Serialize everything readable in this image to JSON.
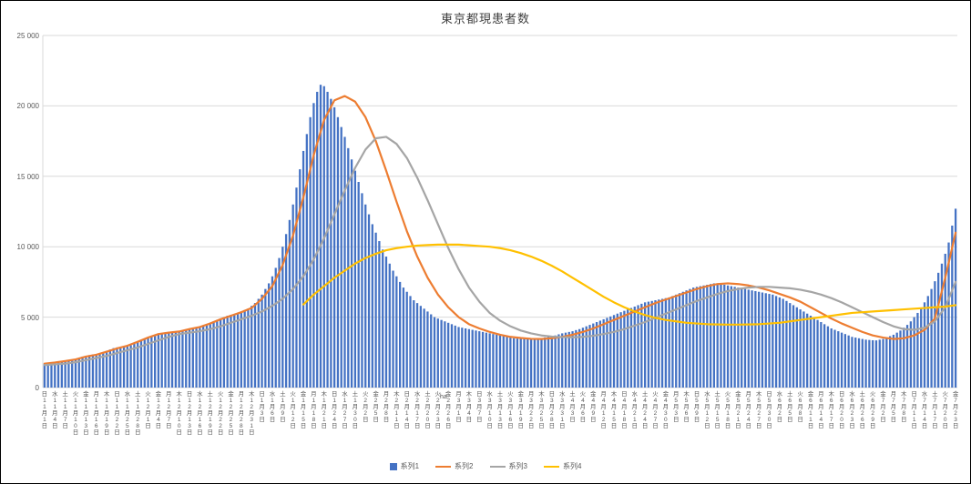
{
  "title": "東京都現患者数",
  "stray_text": "ha",
  "chart_data": {
    "type": "combo-bar-line",
    "title": "東京都現患者数",
    "ylim": [
      0,
      25000
    ],
    "y_tick_step": 5000,
    "y_tick_labels": [
      "25 000",
      "20 000",
      "15 000",
      "10 000",
      "5 000",
      "0"
    ],
    "x_tick_interval_days": 3,
    "grid": "horizontal",
    "legend_position": "bottom",
    "x_ticks": [
      "日|11月|1日",
      "水|11月|4日",
      "土|11月|7日",
      "火|11月|10日",
      "金|11月|13日",
      "月|11月|16日",
      "木|11月|19日",
      "日|11月|22日",
      "水|11月|25日",
      "土|11月|28日",
      "火|12月|1日",
      "金|12月|4日",
      "月|12月|7日",
      "木|12月|10日",
      "日|12月|13日",
      "水|12月|16日",
      "土|12月|19日",
      "火|12月|22日",
      "金|12月|25日",
      "月|12月|28日",
      "木|12月|31日",
      "日|1月|3日",
      "水|1月|6日",
      "土|1月|9日",
      "火|1月|12日",
      "金|1月|15日",
      "月|1月|18日",
      "木|1月|21日",
      "日|1月|24日",
      "水|1月|27日",
      "土|1月|30日",
      "火|2月|2日",
      "金|2月|5日",
      "月|2月|8日",
      "木|2月|11日",
      "日|2月|14日",
      "水|2月|17日",
      "土|2月|20日",
      "火|2月|23日",
      "金|2月|26日",
      "月|3月|1日",
      "木|3月|4日",
      "日|3月|7日",
      "水|3月|10日",
      "土|3月|13日",
      "火|3月|16日",
      "金|3月|19日",
      "月|3月|22日",
      "木|3月|25日",
      "日|3月|28日",
      "水|3月|31日",
      "土|4月|3日",
      "火|4月|6日",
      "金|4月|9日",
      "月|4月|12日",
      "木|4月|15日",
      "日|4月|18日",
      "水|4月|21日",
      "土|4月|24日",
      "火|4月|27日",
      "金|4月|30日",
      "月|5月|3日",
      "木|5月|6日",
      "日|5月|9日",
      "水|5月|12日",
      "土|5月|15日",
      "火|5月|18日",
      "金|5月|21日",
      "月|5月|24日",
      "木|5月|27日",
      "日|5月|30日",
      "水|6月|2日",
      "土|6月|5日",
      "火|6月|8日",
      "金|6月|11日",
      "月|6月|14日",
      "木|6月|17日",
      "日|6月|20日",
      "水|6月|23日",
      "土|6月|26日",
      "火|6月|29日",
      "金|7月|2日",
      "月|7月|5日",
      "木|7月|8日",
      "日|7月|11日",
      "水|7月|14日",
      "土|7月|17日",
      "火|7月|20日",
      "金|7月|23日"
    ],
    "series": [
      {
        "name": "系列1",
        "type": "bar",
        "color": "#4472C4",
        "values": [
          1700,
          1650,
          1600,
          1750,
          1800,
          1850,
          1900,
          1950,
          1900,
          2000,
          2100,
          2200,
          2250,
          2300,
          2350,
          2300,
          2400,
          2500,
          2600,
          2700,
          2800,
          2850,
          2800,
          2900,
          2950,
          3000,
          3100,
          3200,
          3300,
          3400,
          3500,
          3600,
          3700,
          3800,
          3850,
          3900,
          3950,
          3900,
          3950,
          4000,
          4050,
          4100,
          4150,
          4200,
          4250,
          4300,
          4400,
          4500,
          4600,
          4700,
          4800,
          4900,
          5000,
          5100,
          5150,
          5200,
          5300,
          5400,
          5500,
          5600,
          5800,
          6000,
          6300,
          6600,
          7000,
          7400,
          7900,
          8500,
          9200,
          10000,
          10900,
          11900,
          13000,
          14200,
          15500,
          16800,
          18000,
          19200,
          20200,
          21000,
          21500,
          21400,
          21000,
          20500,
          19900,
          19200,
          18500,
          17800,
          17000,
          16200,
          15400,
          14600,
          13800,
          13000,
          12300,
          11600,
          11000,
          10400,
          9800,
          9300,
          8800,
          8300,
          7900,
          7500,
          7100,
          6800,
          6500,
          6200,
          6000,
          5800,
          5600,
          5400,
          5200,
          5000,
          4900,
          4800,
          4700,
          4600,
          4500,
          4400,
          4300,
          4250,
          4200,
          4150,
          4100,
          4050,
          4000,
          3950,
          3900,
          3850,
          3800,
          3750,
          3700,
          3650,
          3600,
          3550,
          3500,
          3480,
          3460,
          3450,
          3440,
          3430,
          3450,
          3480,
          3520,
          3560,
          3600,
          3650,
          3700,
          3780,
          3850,
          3900,
          3950,
          4000,
          4080,
          4150,
          4250,
          4350,
          4450,
          4550,
          4650,
          4750,
          4850,
          4950,
          5050,
          5150,
          5250,
          5350,
          5450,
          5550,
          5650,
          5750,
          5850,
          5950,
          6050,
          6100,
          6150,
          6200,
          6250,
          6300,
          6350,
          6400,
          6500,
          6600,
          6700,
          6800,
          6900,
          7000,
          7100,
          7150,
          7200,
          7250,
          7300,
          7350,
          7400,
          7380,
          7350,
          7300,
          7250,
          7200,
          7150,
          7100,
          7050,
          7000,
          6950,
          6900,
          6850,
          6800,
          6750,
          6700,
          6650,
          6600,
          6500,
          6400,
          6300,
          6150,
          6000,
          5850,
          5700,
          5550,
          5400,
          5250,
          5100,
          4950,
          4800,
          4650,
          4500,
          4350,
          4200,
          4100,
          4000,
          3900,
          3800,
          3700,
          3600,
          3550,
          3500,
          3450,
          3400,
          3380,
          3360,
          3350,
          3400,
          3450,
          3550,
          3650,
          3750,
          3900,
          4050,
          4250,
          4450,
          4700,
          5000,
          5300,
          5650,
          6050,
          6500,
          7000,
          7550,
          8150,
          8800,
          9500,
          10300,
          11500,
          12700
        ]
      },
      {
        "name": "系列2",
        "type": "line",
        "color": "#ED7D31",
        "start_tick": 0,
        "tick_values": [
          1700,
          1780,
          1880,
          2000,
          2200,
          2330,
          2550,
          2780,
          2970,
          3250,
          3550,
          3800,
          3900,
          3980,
          4150,
          4300,
          4550,
          4850,
          5100,
          5350,
          5650,
          6300,
          7200,
          8700,
          10800,
          13500,
          16500,
          19000,
          20400,
          20700,
          20300,
          19200,
          17500,
          15400,
          13200,
          11100,
          9300,
          7800,
          6600,
          5700,
          5000,
          4500,
          4200,
          3950,
          3750,
          3600,
          3520,
          3460,
          3450,
          3500,
          3600,
          3750,
          3950,
          4200,
          4500,
          4800,
          5100,
          5400,
          5700,
          6000,
          6250,
          6500,
          6750,
          7000,
          7200,
          7350,
          7400,
          7350,
          7250,
          7100,
          6900,
          6650,
          6400,
          6100,
          5700,
          5300,
          4900,
          4550,
          4250,
          3950,
          3700,
          3550,
          3450,
          3500,
          3700,
          4100,
          4900,
          7800,
          11000
        ]
      },
      {
        "name": "系列3",
        "type": "line",
        "color": "#A5A5A5",
        "start_tick": 0,
        "tick_values": [
          1600,
          1650,
          1700,
          1800,
          1950,
          2100,
          2250,
          2450,
          2650,
          2850,
          3100,
          3350,
          3600,
          3800,
          3900,
          4000,
          4150,
          4350,
          4600,
          4850,
          5100,
          5400,
          5800,
          6300,
          7000,
          7900,
          9100,
          10600,
          12300,
          14000,
          15600,
          16900,
          17700,
          17800,
          17300,
          16300,
          14900,
          13300,
          11600,
          9900,
          8400,
          7100,
          6100,
          5300,
          4750,
          4350,
          4050,
          3850,
          3700,
          3620,
          3580,
          3570,
          3600,
          3680,
          3800,
          3950,
          4150,
          4400,
          4650,
          4950,
          5250,
          5550,
          5850,
          6150,
          6400,
          6650,
          6850,
          7000,
          7100,
          7150,
          7150,
          7100,
          7050,
          6950,
          6800,
          6600,
          6350,
          6050,
          5700,
          5350,
          5000,
          4650,
          4350,
          4150,
          4100,
          4250,
          4700,
          5700,
          7500
        ]
      },
      {
        "name": "系列4",
        "type": "line",
        "color": "#FFC000",
        "start_tick": 25,
        "tick_values": [
          5900,
          6600,
          7200,
          7800,
          8300,
          8800,
          9200,
          9500,
          9750,
          9900,
          10000,
          10080,
          10120,
          10150,
          10150,
          10150,
          10100,
          10050,
          10000,
          9900,
          9750,
          9550,
          9300,
          9000,
          8650,
          8250,
          7800,
          7350,
          6900,
          6450,
          6050,
          5700,
          5400,
          5150,
          4950,
          4800,
          4700,
          4600,
          4550,
          4500,
          4480,
          4470,
          4470,
          4480,
          4500,
          4550,
          4600,
          4700,
          4800,
          4900,
          5000,
          5100,
          5200,
          5300,
          5350,
          5400,
          5450,
          5500,
          5550,
          5600,
          5650,
          5700,
          5750,
          5850
        ]
      }
    ]
  }
}
